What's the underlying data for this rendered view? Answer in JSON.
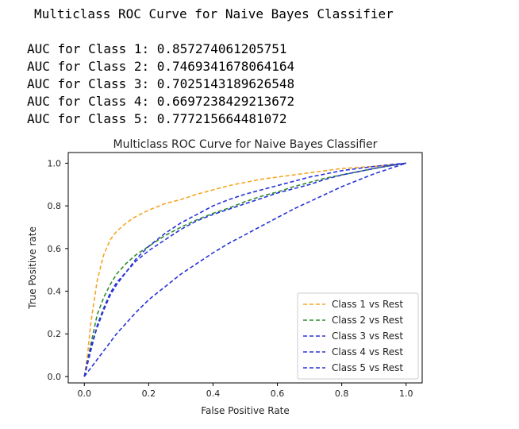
{
  "output": {
    "heading": "Multiclass ROC Curve for Naive Bayes Classifier",
    "auc_lines": [
      "AUC for Class 1: 0.857274061205751",
      "AUC for Class 2: 0.7469341678064164",
      "AUC for Class 3: 0.7025143189626548",
      "AUC for Class 4: 0.6697238429213672",
      "AUC for Class 5: 0.777215664481072"
    ]
  },
  "chart_data": {
    "type": "line",
    "title": "Multiclass ROC Curve for Naive Bayes Classifier",
    "xlabel": "False Positive Rate",
    "ylabel": "True Positive rate",
    "xlim": [
      -0.05,
      1.05
    ],
    "ylim": [
      -0.03,
      1.05
    ],
    "xticks": [
      0.0,
      0.2,
      0.4,
      0.6,
      0.8,
      1.0
    ],
    "xtick_labels": [
      "0.0",
      "0.2",
      "0.4",
      "0.6",
      "0.8",
      "1.0"
    ],
    "yticks": [
      0.0,
      0.2,
      0.4,
      0.6,
      0.8,
      1.0
    ],
    "ytick_labels": [
      "0.0",
      "0.2",
      "0.4",
      "0.6",
      "0.8",
      "1.0"
    ],
    "grid": false,
    "legend_position": "lower right",
    "line_style": "dashed",
    "series": [
      {
        "name": "Class 1 vs Rest",
        "color": "#f5a623",
        "x": [
          0,
          0.01,
          0.02,
          0.04,
          0.06,
          0.08,
          0.1,
          0.13,
          0.16,
          0.2,
          0.25,
          0.3,
          0.35,
          0.4,
          0.45,
          0.5,
          0.55,
          0.6,
          0.65,
          0.7,
          0.75,
          0.8,
          0.85,
          0.9,
          0.95,
          1.0
        ],
        "y": [
          0,
          0.1,
          0.25,
          0.45,
          0.57,
          0.64,
          0.68,
          0.72,
          0.75,
          0.78,
          0.81,
          0.83,
          0.855,
          0.875,
          0.895,
          0.91,
          0.925,
          0.935,
          0.945,
          0.955,
          0.965,
          0.975,
          0.98,
          0.985,
          0.992,
          1.0
        ]
      },
      {
        "name": "Class 2 vs Rest",
        "color": "#2e8b2e",
        "x": [
          0,
          0.02,
          0.04,
          0.06,
          0.08,
          0.1,
          0.13,
          0.16,
          0.2,
          0.25,
          0.3,
          0.35,
          0.4,
          0.45,
          0.5,
          0.55,
          0.6,
          0.65,
          0.7,
          0.75,
          0.8,
          0.85,
          0.9,
          0.95,
          1.0
        ],
        "y": [
          0,
          0.15,
          0.29,
          0.37,
          0.43,
          0.48,
          0.53,
          0.57,
          0.61,
          0.66,
          0.7,
          0.735,
          0.765,
          0.79,
          0.82,
          0.845,
          0.865,
          0.89,
          0.91,
          0.93,
          0.945,
          0.96,
          0.975,
          0.988,
          1.0
        ]
      },
      {
        "name": "Class 3 vs Rest",
        "color": "#2833d9",
        "x": [
          0,
          0.02,
          0.04,
          0.06,
          0.08,
          0.1,
          0.13,
          0.16,
          0.2,
          0.25,
          0.3,
          0.35,
          0.4,
          0.45,
          0.5,
          0.55,
          0.6,
          0.65,
          0.7,
          0.75,
          0.8,
          0.85,
          0.9,
          0.95,
          1.0
        ],
        "y": [
          0,
          0.12,
          0.24,
          0.32,
          0.39,
          0.44,
          0.49,
          0.54,
          0.59,
          0.64,
          0.69,
          0.73,
          0.76,
          0.785,
          0.81,
          0.835,
          0.86,
          0.88,
          0.9,
          0.925,
          0.945,
          0.96,
          0.975,
          0.988,
          1.0
        ]
      },
      {
        "name": "Class 4 vs Rest",
        "color": "#2833d9",
        "x": [
          0,
          0.02,
          0.04,
          0.06,
          0.08,
          0.1,
          0.13,
          0.16,
          0.2,
          0.25,
          0.3,
          0.35,
          0.4,
          0.45,
          0.5,
          0.55,
          0.6,
          0.65,
          0.7,
          0.75,
          0.8,
          0.85,
          0.9,
          0.95,
          1.0
        ],
        "y": [
          0,
          0.04,
          0.08,
          0.12,
          0.16,
          0.2,
          0.25,
          0.3,
          0.36,
          0.42,
          0.48,
          0.53,
          0.58,
          0.625,
          0.665,
          0.705,
          0.745,
          0.785,
          0.82,
          0.855,
          0.89,
          0.92,
          0.95,
          0.975,
          1.0
        ]
      },
      {
        "name": "Class 5 vs Rest",
        "color": "#2833d9",
        "x": [
          0,
          0.02,
          0.04,
          0.06,
          0.08,
          0.1,
          0.13,
          0.16,
          0.2,
          0.25,
          0.3,
          0.35,
          0.4,
          0.45,
          0.5,
          0.55,
          0.6,
          0.65,
          0.7,
          0.75,
          0.8,
          0.85,
          0.9,
          0.95,
          1.0
        ],
        "y": [
          0,
          0.14,
          0.23,
          0.31,
          0.38,
          0.43,
          0.49,
          0.55,
          0.61,
          0.67,
          0.72,
          0.76,
          0.8,
          0.83,
          0.855,
          0.875,
          0.895,
          0.915,
          0.935,
          0.95,
          0.965,
          0.975,
          0.985,
          0.993,
          1.0
        ]
      }
    ]
  }
}
